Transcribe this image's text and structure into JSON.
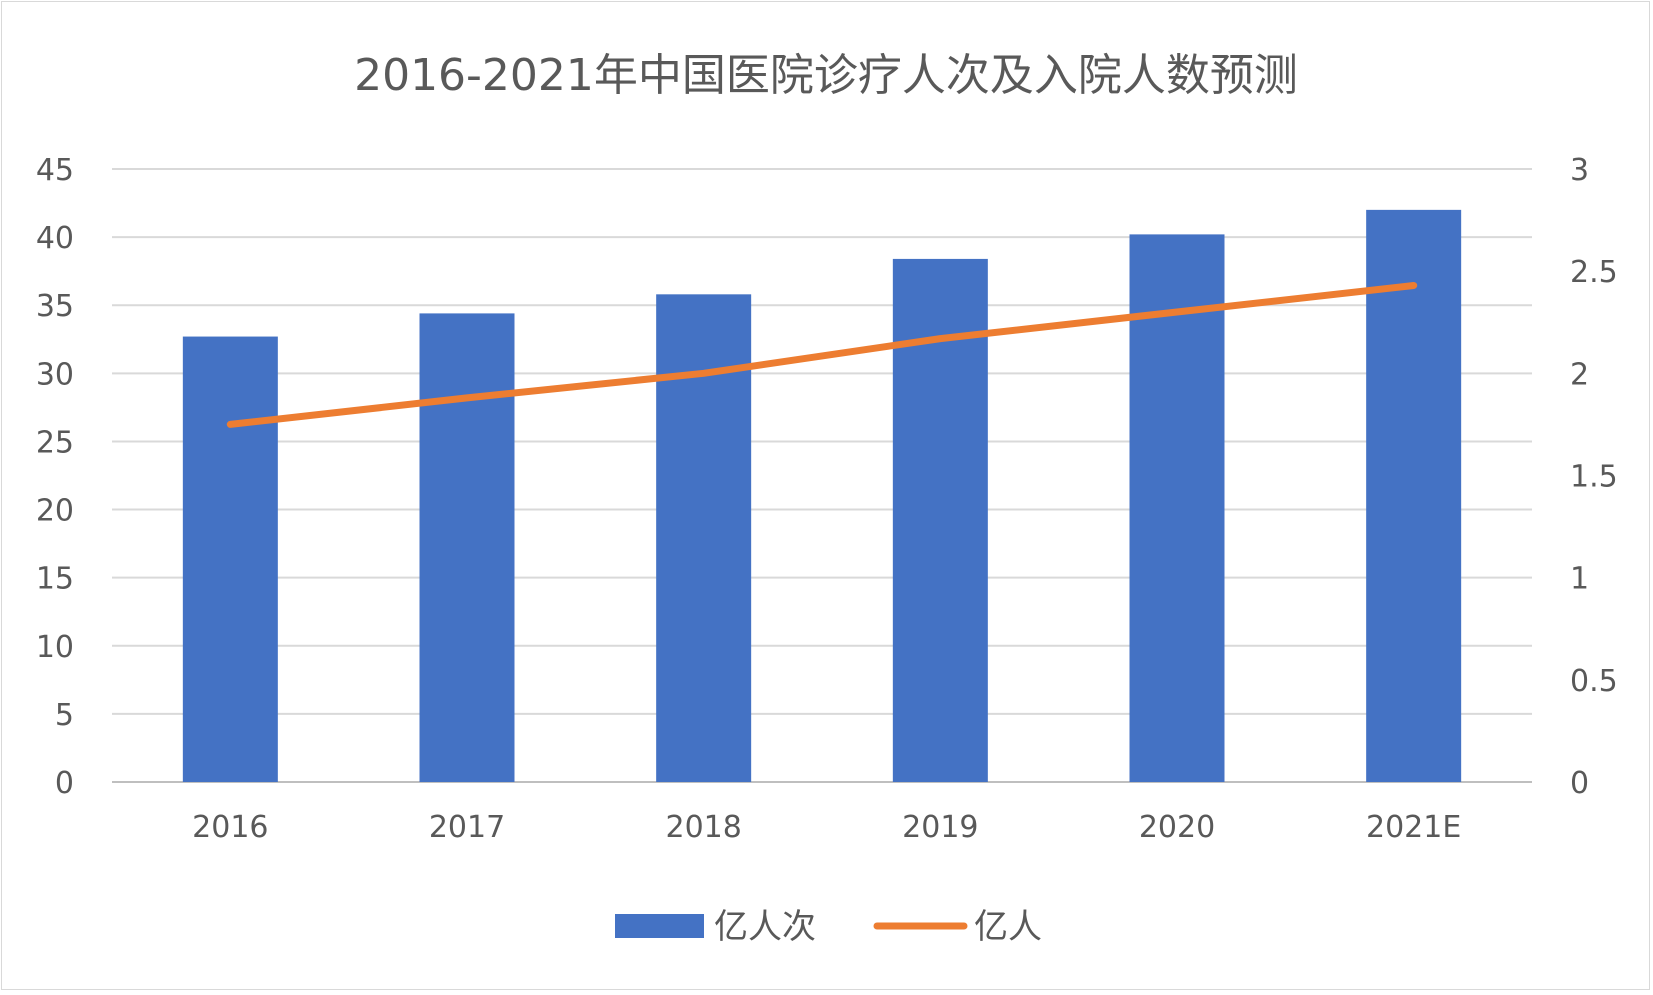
{
  "chart_data": {
    "type": "bar",
    "title": "2016-2021年中国医院诊疗人次及入院人数预测",
    "categories": [
      "2016",
      "2017",
      "2018",
      "2019",
      "2020",
      "2021E"
    ],
    "series": [
      {
        "name": "亿人次",
        "type": "bar",
        "axis": "left",
        "color": "#4472C4",
        "values": [
          32.7,
          34.4,
          35.8,
          38.4,
          40.2,
          42.0
        ]
      },
      {
        "name": "亿人",
        "type": "line",
        "axis": "right",
        "color": "#ED7D31",
        "values": [
          1.75,
          1.88,
          2.0,
          2.17,
          2.3,
          2.43
        ]
      }
    ],
    "y_left": {
      "min": 0,
      "max": 45,
      "ticks": [
        "0",
        "5",
        "10",
        "15",
        "20",
        "25",
        "30",
        "35",
        "40",
        "45"
      ]
    },
    "y_right": {
      "min": 0,
      "max": 3,
      "ticks": [
        "0",
        "0.5",
        "1",
        "1.5",
        "2",
        "2.5",
        "3"
      ]
    },
    "grid": true,
    "legend_position": "bottom"
  }
}
